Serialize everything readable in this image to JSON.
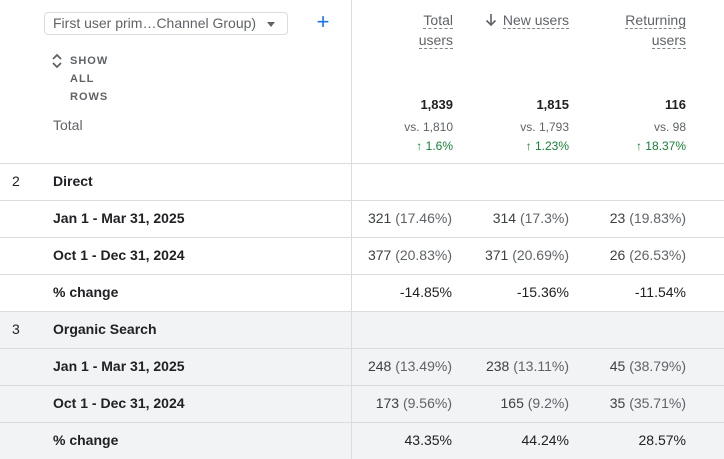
{
  "toolbar": {
    "dimension_select": "First user prim…Channel Group)",
    "show_all_rows": "SHOW ALL ROWS"
  },
  "columns": [
    {
      "line1": "Total",
      "line2": "users"
    },
    {
      "line1": "New users",
      "sorted": true
    },
    {
      "line1": "Returning",
      "line2": "users"
    }
  ],
  "total": {
    "label": "Total",
    "values": [
      "1,839",
      "1,815",
      "116"
    ],
    "vs": [
      "vs. 1,810",
      "vs. 1,793",
      "vs. 98"
    ],
    "change": [
      "1.6%",
      "1.23%",
      "18.37%"
    ]
  },
  "groups": [
    {
      "index": "2",
      "name": "Direct",
      "rows": [
        {
          "label": "Jan 1 - Mar 31, 2025",
          "c1": "321",
          "c1p": "(17.46%)",
          "c2": "314",
          "c2p": "(17.3%)",
          "c3": "23",
          "c3p": "(19.83%)"
        },
        {
          "label": "Oct 1 - Dec 31, 2024",
          "c1": "377",
          "c1p": "(20.83%)",
          "c2": "371",
          "c2p": "(20.69%)",
          "c3": "26",
          "c3p": "(26.53%)"
        },
        {
          "label": "% change",
          "c1": "-14.85%",
          "c2": "-15.36%",
          "c3": "-11.54%"
        }
      ]
    },
    {
      "index": "3",
      "name": "Organic Search",
      "rows": [
        {
          "label": "Jan 1 - Mar 31, 2025",
          "c1": "248",
          "c1p": "(13.49%)",
          "c2": "238",
          "c2p": "(13.11%)",
          "c3": "45",
          "c3p": "(38.79%)"
        },
        {
          "label": "Oct 1 - Dec 31, 2024",
          "c1": "173",
          "c1p": "(9.56%)",
          "c2": "165",
          "c2p": "(9.2%)",
          "c3": "35",
          "c3p": "(35.71%)"
        },
        {
          "label": "% change",
          "c1": "43.35%",
          "c2": "44.24%",
          "c3": "28.57%"
        }
      ]
    }
  ],
  "colors": {
    "accent": "#1a73e8",
    "positive": "#188038",
    "border": "#dadce0",
    "shaded": "#f1f3f4"
  }
}
